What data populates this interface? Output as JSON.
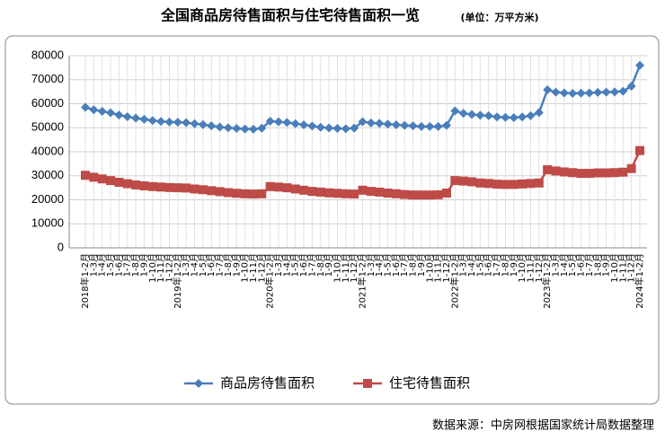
{
  "chart_data": {
    "type": "line",
    "title": "全国商品房待售面积与住宅待售面积一览",
    "subtitle": "(单位：万平方米)",
    "source": "数据来源：中房网根据国家统计局数据整理",
    "categories": [
      "2018年1-2月",
      "1-3月",
      "1-4月",
      "1-5月",
      "1-6月",
      "1-7月",
      "1-8月",
      "1-9月",
      "1-10月",
      "1-11月",
      "1-12月",
      "2019年1-2月",
      "1-3月",
      "1-4月",
      "1-5月",
      "1-6月",
      "1-7月",
      "1-8月",
      "1-9月",
      "1-10月",
      "1-11月",
      "1-12月",
      "2020年1-2月",
      "1-3月",
      "1-4月",
      "1-5月",
      "1-6月",
      "1-7月",
      "1-8月",
      "1-9月",
      "1-10月",
      "1-11月",
      "1-12月",
      "2021年1-2月",
      "1-3月",
      "1-4月",
      "1-5月",
      "1-6月",
      "1-7月",
      "1-8月",
      "1-9月",
      "1-10月",
      "1-11月",
      "1-12月",
      "2022年1-2月",
      "1-3月",
      "1-4月",
      "1-5月",
      "1-6月",
      "1-7月",
      "1-8月",
      "1-9月",
      "1-10月",
      "1-11月",
      "1-12月",
      "2023年1-2月",
      "1-3月",
      "1-4月",
      "1-5月",
      "1-6月",
      "1-7月",
      "1-8月",
      "1-9月",
      "1-10月",
      "1-11月",
      "1-12月",
      "2024年1-2月"
    ],
    "series": [
      {
        "name": "商品房待售面积",
        "color": "#4a7ebb",
        "marker": "diamond",
        "values": [
          58500,
          57500,
          56800,
          56200,
          55300,
          54600,
          54000,
          53500,
          53000,
          52600,
          52400,
          52300,
          52100,
          51700,
          51300,
          50800,
          50300,
          50000,
          49700,
          49500,
          49400,
          49800,
          52700,
          52500,
          52200,
          51700,
          51200,
          50700,
          50200,
          49900,
          49700,
          49600,
          49850,
          52500,
          52000,
          51800,
          51500,
          51200,
          51000,
          50800,
          50500,
          50500,
          50500,
          51000,
          57000,
          56000,
          55500,
          55200,
          55000,
          54500,
          54300,
          54200,
          54500,
          55000,
          56300,
          65800,
          64800,
          64500,
          64300,
          64400,
          64500,
          64700,
          64800,
          64900,
          65200,
          67300,
          76000
        ]
      },
      {
        "name": "住宅待售面积",
        "color": "#be4b48",
        "marker": "square",
        "values": [
          30200,
          29400,
          28700,
          28000,
          27300,
          26700,
          26200,
          25800,
          25500,
          25300,
          25100,
          25000,
          24900,
          24500,
          24200,
          23800,
          23400,
          23000,
          22700,
          22500,
          22400,
          22500,
          25500,
          25300,
          25000,
          24500,
          24000,
          23500,
          23200,
          22900,
          22700,
          22500,
          22400,
          24000,
          23500,
          23200,
          22800,
          22500,
          22200,
          22000,
          22000,
          22000,
          22100,
          22800,
          28000,
          27800,
          27500,
          27000,
          26800,
          26500,
          26400,
          26400,
          26600,
          26800,
          27000,
          32500,
          32000,
          31600,
          31300,
          31000,
          31000,
          31200,
          31200,
          31300,
          31500,
          33000,
          40500
        ]
      }
    ],
    "ylim": [
      0,
      80000
    ],
    "yticks": [
      0,
      10000,
      20000,
      30000,
      40000,
      50000,
      60000,
      70000,
      80000
    ],
    "grid": true,
    "legend": "bottom"
  }
}
